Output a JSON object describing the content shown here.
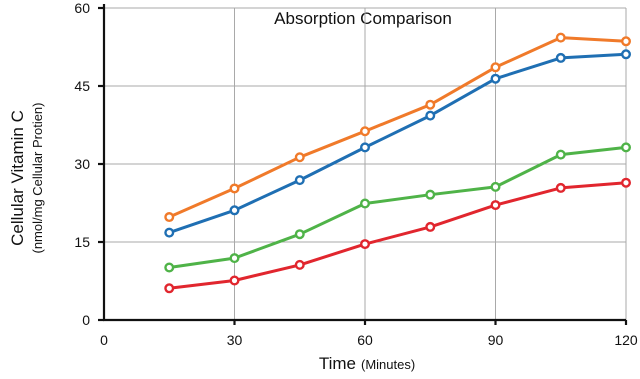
{
  "chart_data": {
    "type": "line",
    "title": "Absorption Comparison",
    "xlabel": "Time",
    "xlabel_unit": "(Minutes)",
    "ylabel": "Cellular Vitamin C",
    "ylabel_unit": "(nmol/mg Cellular Protien)",
    "xlim": [
      0,
      120
    ],
    "ylim": [
      0,
      60
    ],
    "xticks": [
      0,
      30,
      60,
      90,
      120
    ],
    "yticks": [
      0,
      15,
      30,
      45,
      60
    ],
    "grid": true,
    "x": [
      15,
      30,
      45,
      60,
      75,
      90,
      105,
      120
    ],
    "series": [
      {
        "color": "#f07a2a",
        "values": [
          19.8,
          25.3,
          31.3,
          36.3,
          41.4,
          48.6,
          54.3,
          53.6
        ]
      },
      {
        "color": "#1f6fb3",
        "values": [
          16.8,
          21.1,
          26.9,
          33.2,
          39.3,
          46.4,
          50.4,
          51.1
        ]
      },
      {
        "color": "#4fb348",
        "values": [
          10.1,
          11.9,
          16.5,
          22.4,
          24.1,
          25.6,
          31.8,
          33.2
        ]
      },
      {
        "color": "#e1262e",
        "values": [
          6.1,
          7.6,
          10.6,
          14.6,
          17.9,
          22.1,
          25.4,
          26.4
        ]
      }
    ]
  }
}
